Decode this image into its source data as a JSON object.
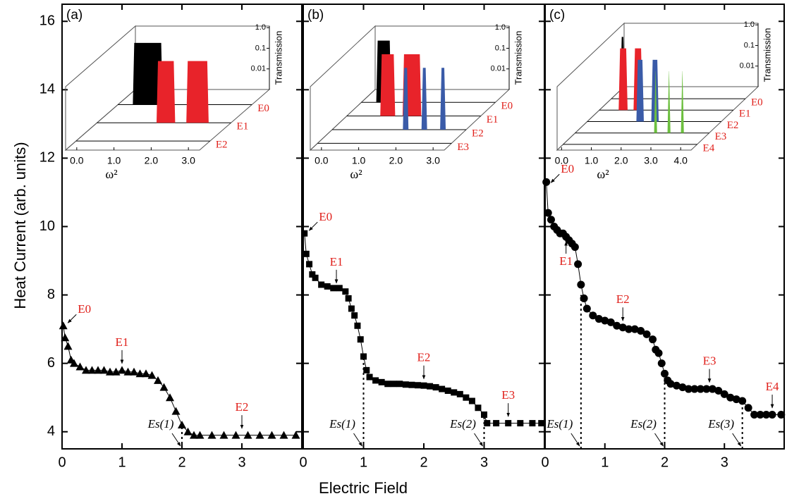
{
  "figure": {
    "ylabel": "Heat Current (arb. units)",
    "xlabel": "Electric Field"
  },
  "chart_data": [
    {
      "type": "line",
      "label": "(a)",
      "marker": "triangle",
      "color": "#000000",
      "x": [
        0.02,
        0.05,
        0.1,
        0.15,
        0.2,
        0.3,
        0.4,
        0.5,
        0.6,
        0.7,
        0.8,
        0.9,
        1.0,
        1.1,
        1.2,
        1.3,
        1.4,
        1.5,
        1.6,
        1.7,
        1.8,
        1.9,
        2.0,
        2.1,
        2.2,
        2.3,
        2.5,
        2.7,
        2.9,
        3.1,
        3.3,
        3.5,
        3.7,
        3.9
      ],
      "values": [
        7.1,
        6.75,
        6.5,
        6.1,
        6.0,
        5.9,
        5.8,
        5.8,
        5.8,
        5.8,
        5.75,
        5.75,
        5.8,
        5.75,
        5.75,
        5.7,
        5.7,
        5.65,
        5.5,
        5.3,
        5.0,
        4.6,
        4.2,
        4.0,
        3.9,
        3.9,
        3.9,
        3.9,
        3.9,
        3.9,
        3.9,
        3.9,
        3.9,
        3.9
      ],
      "xlim": [
        0,
        4
      ],
      "xticks": [
        0,
        1,
        2,
        3
      ],
      "ylim": [
        3.5,
        16.5
      ],
      "yticks": [
        4,
        6,
        8,
        10,
        12,
        14,
        16
      ],
      "annotations": [
        {
          "text": "E0",
          "x": 0.05,
          "y": 7.1,
          "style": "diag"
        },
        {
          "text": "E1",
          "x": 1.0,
          "y": 5.85,
          "style": "down"
        },
        {
          "text": "E2",
          "x": 3.0,
          "y": 3.95,
          "style": "down"
        }
      ],
      "annotation_color": "#e0201b",
      "thresholds": [
        {
          "text": "Es(1)",
          "x": 2,
          "y": 4.2
        }
      ],
      "inset": {
        "xlabel": "ω²",
        "zlabel": "Transmission",
        "xlim": [
          -0.3,
          3.3
        ],
        "xticks": [
          {
            "value": 0,
            "label": "0.0"
          },
          {
            "value": 1,
            "label": "1.0"
          },
          {
            "value": 2,
            "label": "2.0"
          },
          {
            "value": 3,
            "label": "3.0"
          }
        ],
        "zlim": [
          0.001,
          1.2
        ],
        "zticks": [
          {
            "value": 1,
            "label": "1.0"
          },
          0.1,
          0.01
        ],
        "zscale": "log",
        "rows": [
          {
            "name": "E0",
            "color": "#000000",
            "bands": [
              [
                0.1,
                0.9
              ]
            ]
          },
          {
            "name": "E1",
            "color": "#e8232a",
            "bands": [
              [
                1.3,
                1.8
              ],
              [
                2.1,
                2.7
              ]
            ]
          },
          {
            "name": "E2"
          }
        ]
      }
    },
    {
      "type": "line",
      "label": "(b)",
      "marker": "square",
      "color": "#000000",
      "x": [
        0.02,
        0.05,
        0.1,
        0.15,
        0.2,
        0.3,
        0.4,
        0.5,
        0.6,
        0.7,
        0.75,
        0.8,
        0.85,
        0.9,
        0.95,
        1.0,
        1.05,
        1.1,
        1.2,
        1.3,
        1.4,
        1.5,
        1.6,
        1.7,
        1.8,
        1.9,
        2.0,
        2.1,
        2.2,
        2.3,
        2.4,
        2.5,
        2.6,
        2.7,
        2.8,
        2.9,
        3.0,
        3.05,
        3.2,
        3.4,
        3.6,
        3.8,
        3.95
      ],
      "values": [
        9.8,
        9.2,
        8.9,
        8.6,
        8.5,
        8.3,
        8.25,
        8.2,
        8.2,
        8.1,
        7.9,
        7.6,
        7.4,
        7.1,
        6.7,
        6.2,
        5.8,
        5.6,
        5.5,
        5.45,
        5.4,
        5.4,
        5.4,
        5.38,
        5.37,
        5.36,
        5.35,
        5.33,
        5.3,
        5.25,
        5.2,
        5.15,
        5.1,
        5.0,
        4.9,
        4.7,
        4.5,
        4.25,
        4.25,
        4.25,
        4.25,
        4.25,
        4.25
      ],
      "xlim": [
        0,
        4
      ],
      "xticks": [
        0,
        1,
        2,
        3
      ],
      "ylim": [
        3.5,
        16.5
      ],
      "annotations": [
        {
          "text": "E0",
          "x": 0.05,
          "y": 9.8,
          "style": "diag"
        },
        {
          "text": "E1",
          "x": 0.55,
          "y": 8.2,
          "style": "down"
        },
        {
          "text": "E2",
          "x": 2.0,
          "y": 5.4,
          "style": "down"
        },
        {
          "text": "E3",
          "x": 3.4,
          "y": 4.3,
          "style": "down"
        }
      ],
      "annotation_color": "#e0201b",
      "thresholds": [
        {
          "text": "Es(1)",
          "x": 1,
          "y": 6.2
        },
        {
          "text": "Es(2)",
          "x": 3,
          "y": 4.5
        }
      ],
      "inset": {
        "xlabel": "ω²",
        "zlabel": "Transmission",
        "xlim": [
          -0.3,
          3.3
        ],
        "xticks": [
          {
            "value": 0,
            "label": "0.0"
          },
          {
            "value": 1,
            "label": "1.0"
          },
          {
            "value": 2,
            "label": "2.0"
          },
          {
            "value": 3,
            "label": "3.0"
          }
        ],
        "zlim": [
          0.001,
          1.2
        ],
        "zticks": [
          {
            "value": 1,
            "label": "1.0"
          },
          0.1,
          0.01
        ],
        "zscale": "log",
        "rows": [
          {
            "name": "E0",
            "color": "#000000",
            "bands": [
              [
                0.1,
                0.5
              ]
            ]
          },
          {
            "name": "E1",
            "color": "#e8232a",
            "bands": [
              [
                0.6,
                1.0
              ],
              [
                1.2,
                1.7
              ]
            ]
          },
          {
            "name": "E2",
            "color": "#3a5ba8",
            "bands": [
              [
                1.6,
                1.75
              ],
              [
                2.1,
                2.25
              ],
              [
                2.6,
                2.75
              ]
            ]
          },
          {
            "name": "E3"
          }
        ]
      }
    },
    {
      "type": "line",
      "label": "(c)",
      "marker": "circle",
      "color": "#000000",
      "x": [
        0.02,
        0.05,
        0.1,
        0.15,
        0.2,
        0.25,
        0.3,
        0.35,
        0.4,
        0.45,
        0.5,
        0.55,
        0.6,
        0.65,
        0.7,
        0.8,
        0.9,
        1.0,
        1.1,
        1.2,
        1.3,
        1.4,
        1.5,
        1.6,
        1.7,
        1.8,
        1.85,
        1.9,
        1.95,
        2.0,
        2.05,
        2.1,
        2.2,
        2.3,
        2.4,
        2.5,
        2.6,
        2.7,
        2.8,
        2.9,
        3.0,
        3.1,
        3.2,
        3.3,
        3.4,
        3.5,
        3.6,
        3.7,
        3.8,
        3.95
      ],
      "values": [
        11.3,
        10.4,
        10.2,
        10.0,
        9.9,
        9.8,
        9.8,
        9.7,
        9.6,
        9.5,
        9.4,
        8.9,
        8.3,
        7.9,
        7.6,
        7.4,
        7.3,
        7.25,
        7.2,
        7.1,
        7.05,
        7.0,
        7.0,
        6.95,
        6.85,
        6.7,
        6.4,
        6.3,
        6.0,
        5.7,
        5.5,
        5.4,
        5.35,
        5.3,
        5.25,
        5.25,
        5.25,
        5.25,
        5.25,
        5.2,
        5.1,
        5.0,
        4.95,
        4.9,
        4.7,
        4.5,
        4.5,
        4.5,
        4.5,
        4.5
      ],
      "xlim": [
        0,
        4
      ],
      "xticks": [
        0,
        1,
        2,
        3
      ],
      "ylim": [
        3.5,
        16.5
      ],
      "annotations": [
        {
          "text": "E0",
          "x": 0.05,
          "y": 11.2,
          "style": "diag"
        },
        {
          "text": "E1",
          "x": 0.35,
          "y": 9.7,
          "style": "up"
        },
        {
          "text": "E2",
          "x": 1.3,
          "y": 7.1,
          "style": "down"
        },
        {
          "text": "E3",
          "x": 2.75,
          "y": 5.3,
          "style": "down"
        },
        {
          "text": "E4",
          "x": 3.8,
          "y": 4.55,
          "style": "down"
        }
      ],
      "annotation_color": "#e0201b",
      "thresholds": [
        {
          "text": "Es(1)",
          "x": 0.6,
          "y": 8.0
        },
        {
          "text": "Es(2)",
          "x": 2,
          "y": 5.7
        },
        {
          "text": "Es(3)",
          "x": 3.3,
          "y": 4.9
        }
      ],
      "inset": {
        "xlabel": "ω²",
        "zlabel": "Transmission",
        "xlim": [
          -0.15,
          4.35
        ],
        "xticks": [
          {
            "value": 0,
            "label": "0.0"
          },
          {
            "value": 1,
            "label": "1.0"
          },
          {
            "value": 2,
            "label": "2.0"
          },
          {
            "value": 3,
            "label": "3.0"
          },
          {
            "value": 4,
            "label": "4.0"
          }
        ],
        "zlim": [
          0.001,
          1.2
        ],
        "zticks": [
          {
            "value": 1,
            "label": "1.0"
          },
          0.1,
          0.01
        ],
        "zscale": "log",
        "rows": [
          {
            "name": "E0",
            "color": "#000000",
            "bands": [
              [
                0.15,
                0.3
              ]
            ]
          },
          {
            "name": "E1",
            "color": "#e8232a",
            "bands": [
              [
                0.5,
                0.8
              ],
              [
                1.0,
                1.3
              ]
            ]
          },
          {
            "name": "E2",
            "color": "#3a5ba8",
            "bands": [
              [
                1.5,
                1.75
              ],
              [
                2.0,
                2.25
              ]
            ]
          },
          {
            "name": "E3",
            "color": "#6cbf3e",
            "bands": [
              [
                2.5,
                2.6
              ],
              [
                2.95,
                3.05
              ],
              [
                3.4,
                3.5
              ]
            ]
          },
          {
            "name": "E4"
          }
        ]
      }
    }
  ]
}
